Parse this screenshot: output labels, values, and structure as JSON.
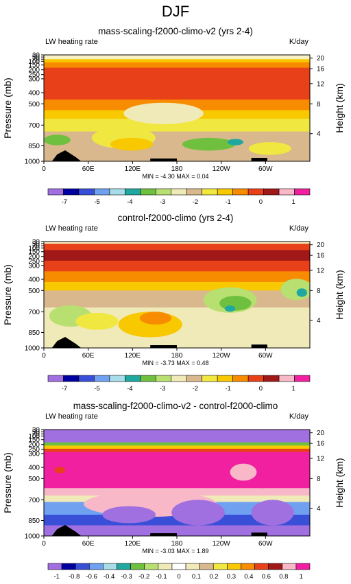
{
  "figure_title": "DJF",
  "chart_data": [
    {
      "type": "heatmap",
      "title": "mass-scaling-f2000-climo-v2 (yrs 2-4)",
      "left_label": "LW heating rate",
      "right_label": "K/day",
      "xlabel": "",
      "ylabel": "Pressure (mb)",
      "y2label": "Height (km)",
      "x_ticks": [
        "0",
        "60E",
        "120E",
        "180",
        "120W",
        "60W"
      ],
      "y_ticks": [
        "30",
        "50",
        "70",
        "100",
        "150",
        "200",
        "250",
        "300",
        "400",
        "500",
        "700",
        "850",
        "1000"
      ],
      "y2_ticks": [
        "20",
        "16",
        "12",
        "8",
        "4"
      ],
      "stats": "MIN = -4.30  MAX =  0.04",
      "min": -4.3,
      "max": 0.04,
      "colorbar": {
        "levels": [
          -7,
          -6,
          -5,
          -4.5,
          -4,
          -3.5,
          -3,
          -2.5,
          -2,
          -1.5,
          -1,
          -0.5,
          0,
          0.5,
          1
        ],
        "labels": [
          "-7",
          "-5",
          "-4",
          "-3",
          "-2",
          "-1",
          "0",
          "1"
        ],
        "colors": [
          "#a070e0",
          "#0000a0",
          "#3a4fd8",
          "#70a0f0",
          "#a8dce8",
          "#20a8a0",
          "#70c040",
          "#b8e070",
          "#f0eab8",
          "#d8b88c",
          "#f0e840",
          "#f8c800",
          "#f88c00",
          "#e84018",
          "#a01818",
          "#f8b8c8",
          "#f020a0"
        ]
      }
    },
    {
      "type": "heatmap",
      "title": "control-f2000-climo (yrs 2-4)",
      "left_label": "LW heating rate",
      "right_label": "K/day",
      "xlabel": "",
      "ylabel": "Pressure (mb)",
      "y2label": "Height (km)",
      "x_ticks": [
        "0",
        "60E",
        "120E",
        "180",
        "120W",
        "60W"
      ],
      "y_ticks": [
        "30",
        "50",
        "70",
        "100",
        "150",
        "200",
        "250",
        "300",
        "400",
        "500",
        "700",
        "850",
        "1000"
      ],
      "y2_ticks": [
        "20",
        "16",
        "12",
        "8",
        "4"
      ],
      "stats": "MIN = -3.73  MAX =  0.48",
      "min": -3.73,
      "max": 0.48,
      "colorbar": {
        "levels": [
          -7,
          -6,
          -5,
          -4.5,
          -4,
          -3.5,
          -3,
          -2.5,
          -2,
          -1.5,
          -1,
          -0.5,
          0,
          0.5,
          1
        ],
        "labels": [
          "-7",
          "-5",
          "-4",
          "-3",
          "-2",
          "-1",
          "0",
          "1"
        ],
        "colors": [
          "#a070e0",
          "#0000a0",
          "#3a4fd8",
          "#70a0f0",
          "#a8dce8",
          "#20a8a0",
          "#70c040",
          "#b8e070",
          "#f0eab8",
          "#d8b88c",
          "#f0e840",
          "#f8c800",
          "#f88c00",
          "#e84018",
          "#a01818",
          "#f8b8c8",
          "#f020a0"
        ]
      }
    },
    {
      "type": "heatmap",
      "title": "mass-scaling-f2000-climo-v2 - control-f2000-climo",
      "left_label": "LW heating rate",
      "right_label": "K/day",
      "xlabel": "",
      "ylabel": "Pressure (mb)",
      "y2label": "Height (km)",
      "x_ticks": [
        "0",
        "60E",
        "120E",
        "180",
        "120W",
        "60W"
      ],
      "y_ticks": [
        "30",
        "50",
        "70",
        "100",
        "150",
        "200",
        "250",
        "300",
        "400",
        "500",
        "700",
        "850",
        "1000"
      ],
      "y2_ticks": [
        "20",
        "16",
        "12",
        "8",
        "4"
      ],
      "stats": "MIN = -3.03  MAX =  1.89",
      "min": -3.03,
      "max": 1.89,
      "colorbar": {
        "levels": [
          -1,
          -0.9,
          -0.8,
          -0.7,
          -0.6,
          -0.5,
          -0.4,
          -0.3,
          -0.2,
          -0.1,
          0,
          0.1,
          0.2,
          0.3,
          0.4,
          0.6,
          0.8,
          1
        ],
        "labels": [
          "-1",
          "-0.8",
          "-0.6",
          "-0.4",
          "-0.3",
          "-0.2",
          "-0.1",
          "0",
          "0.1",
          "0.2",
          "0.3",
          "0.4",
          "0.6",
          "0.8",
          "1"
        ],
        "colors": [
          "#a070e0",
          "#0000a0",
          "#3a4fd8",
          "#70a0f0",
          "#a8dce8",
          "#20a8a0",
          "#70c040",
          "#b8e070",
          "#f0eab8",
          "#ffffff",
          "#f0eab8",
          "#d8b88c",
          "#f0e840",
          "#f8c800",
          "#f88c00",
          "#e84018",
          "#a01818",
          "#f8b8c8",
          "#f020a0"
        ]
      }
    }
  ]
}
